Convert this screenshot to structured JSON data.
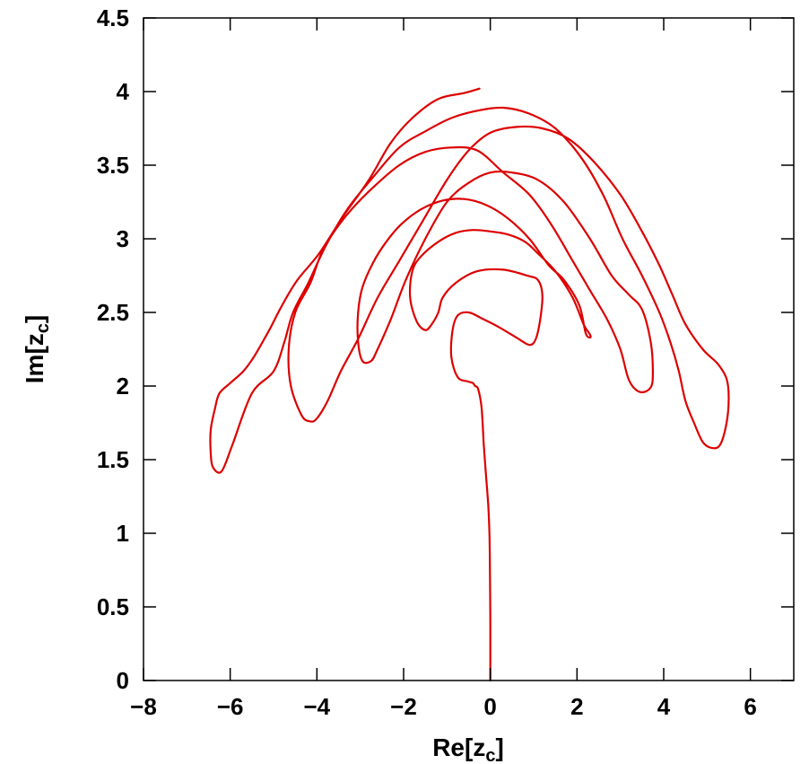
{
  "chart_data": {
    "type": "line",
    "title": "",
    "xlabel": {
      "base": "Re[z",
      "sub": "c",
      "close": "]"
    },
    "ylabel": {
      "base": "Im[z",
      "sub": "c",
      "close": "]"
    },
    "xlim": [
      -8,
      7
    ],
    "ylim": [
      0,
      4.5
    ],
    "xticks": [
      -8,
      -6,
      -4,
      -2,
      0,
      2,
      4,
      6
    ],
    "xtick_labels": [
      "−8",
      "−6",
      "−4",
      "−2",
      "0",
      "2",
      "4",
      "6"
    ],
    "yticks": [
      0,
      0.5,
      1,
      1.5,
      2,
      2.5,
      3,
      3.5,
      4,
      4.5
    ],
    "ytick_labels": [
      "0",
      "0.5",
      "1",
      "1.5",
      "2",
      "2.5",
      "3",
      "3.5",
      "4",
      "4.5"
    ],
    "grid": false,
    "series": [
      {
        "color": "#dd0000",
        "x": [
          0.0,
          0.0,
          -0.01,
          -0.02,
          -0.05,
          -0.1,
          -0.15,
          -0.2,
          -0.28,
          -0.35,
          -0.4,
          -0.5,
          -0.75,
          -0.9,
          -0.87,
          -0.75,
          -0.5,
          -0.2,
          0.2,
          0.6,
          0.9,
          1.05,
          1.15,
          1.2,
          1.1,
          0.85,
          0.3,
          -0.3,
          -0.8,
          -1.1,
          -1.2,
          -1.35,
          -1.5,
          -1.7,
          -1.85,
          -1.8,
          -1.6,
          -1.2,
          -0.8,
          -0.4,
          0.0,
          0.4,
          0.8,
          1.1,
          1.5,
          1.9,
          2.15,
          2.3,
          2.3,
          2.2,
          2.05,
          1.7,
          1.35,
          0.9,
          0.4,
          -0.1,
          -0.6,
          -1.1,
          -1.6,
          -2.05,
          -2.4,
          -2.7,
          -2.95,
          -3.05,
          -3.05,
          -2.95,
          -2.75,
          -2.6,
          -2.3,
          -1.95,
          -1.5,
          -1.0,
          -0.5,
          0.0,
          0.5,
          1.1,
          1.7,
          2.3,
          2.8,
          3.2,
          3.5,
          3.7,
          3.75,
          3.7,
          3.45,
          3.2,
          3.0,
          2.7,
          2.3,
          1.9,
          1.4,
          0.9,
          0.3,
          -0.3,
          -0.9,
          -1.5,
          -2.1,
          -2.7,
          -3.2,
          -3.6,
          -3.9,
          -4.15,
          -4.5,
          -4.65,
          -4.6,
          -4.35,
          -4.15,
          -4.0,
          -3.75,
          -3.45,
          -3.05,
          -2.6,
          -2.1,
          -1.6,
          -1.0,
          -0.5,
          0.0,
          0.6,
          1.2,
          1.8,
          2.4,
          3.0,
          3.5,
          3.9,
          4.2,
          4.5,
          4.9,
          5.25,
          5.45,
          5.5,
          5.45,
          5.3,
          5.1,
          4.9,
          4.7,
          4.5,
          4.35,
          4.15,
          3.9,
          3.5,
          3.05,
          2.6,
          2.1,
          1.5,
          0.9,
          0.3,
          -0.3,
          -0.9,
          -1.5,
          -2.1,
          -2.7,
          -3.3,
          -3.8,
          -4.2,
          -4.55,
          -4.75,
          -5.0,
          -5.5,
          -5.95,
          -6.2,
          -6.4,
          -6.45,
          -6.45,
          -6.35,
          -6.25,
          -6.0,
          -5.7,
          -5.45,
          -5.1,
          -4.8,
          -4.45,
          -3.95,
          -3.4,
          -2.8,
          -2.3,
          -1.8,
          -1.2,
          -0.6,
          -0.25
        ],
        "y": [
          0.0,
          0.4,
          0.8,
          1.0,
          1.2,
          1.4,
          1.6,
          1.85,
          1.98,
          2.0,
          2.02,
          2.03,
          2.06,
          2.2,
          2.38,
          2.48,
          2.5,
          2.46,
          2.4,
          2.33,
          2.28,
          2.32,
          2.45,
          2.62,
          2.72,
          2.75,
          2.79,
          2.78,
          2.7,
          2.6,
          2.5,
          2.42,
          2.38,
          2.44,
          2.6,
          2.78,
          2.88,
          2.98,
          3.04,
          3.06,
          3.05,
          3.03,
          2.98,
          2.9,
          2.78,
          2.6,
          2.42,
          2.35,
          2.33,
          2.36,
          2.55,
          2.72,
          2.82,
          3.0,
          3.14,
          3.23,
          3.27,
          3.26,
          3.2,
          3.1,
          2.98,
          2.84,
          2.67,
          2.5,
          2.3,
          2.17,
          2.17,
          2.25,
          2.45,
          2.72,
          3.0,
          3.25,
          3.38,
          3.45,
          3.45,
          3.4,
          3.25,
          3.0,
          2.75,
          2.62,
          2.52,
          2.3,
          2.1,
          1.99,
          1.96,
          2.04,
          2.25,
          2.45,
          2.65,
          2.85,
          3.1,
          3.3,
          3.45,
          3.6,
          3.62,
          3.59,
          3.5,
          3.35,
          3.2,
          3.05,
          2.9,
          2.7,
          2.5,
          2.25,
          2.0,
          1.8,
          1.76,
          1.78,
          1.9,
          2.1,
          2.32,
          2.6,
          2.85,
          3.1,
          3.4,
          3.6,
          3.72,
          3.76,
          3.75,
          3.68,
          3.52,
          3.3,
          3.05,
          2.82,
          2.62,
          2.42,
          2.25,
          2.15,
          2.05,
          1.92,
          1.75,
          1.6,
          1.58,
          1.62,
          1.75,
          1.9,
          2.1,
          2.3,
          2.5,
          2.75,
          3.0,
          3.3,
          3.55,
          3.75,
          3.85,
          3.89,
          3.87,
          3.82,
          3.73,
          3.62,
          3.42,
          3.2,
          2.95,
          2.7,
          2.5,
          2.3,
          2.1,
          1.95,
          1.6,
          1.42,
          1.45,
          1.55,
          1.7,
          1.85,
          1.95,
          2.02,
          2.1,
          2.2,
          2.38,
          2.55,
          2.72,
          2.9,
          3.15,
          3.4,
          3.65,
          3.82,
          3.95,
          3.99,
          4.02
        ]
      }
    ]
  }
}
